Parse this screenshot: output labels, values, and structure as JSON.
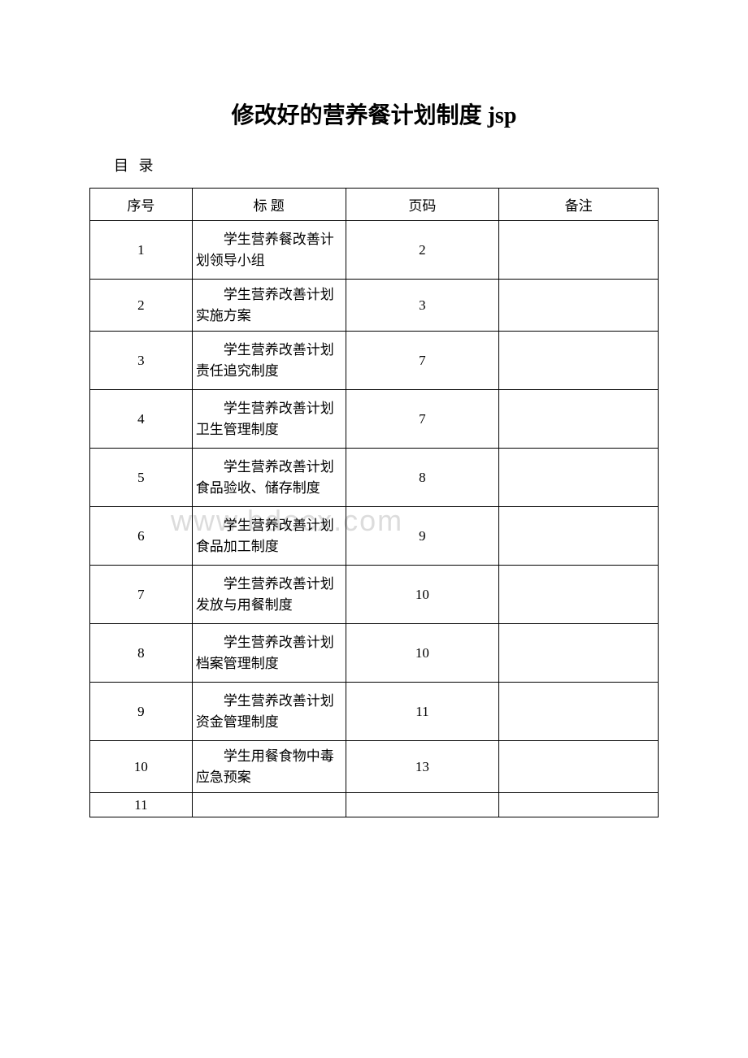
{
  "document": {
    "title": "修改好的营养餐计划制度 jsp",
    "subtitle": "目 录",
    "watermark": "www.bdocx.com"
  },
  "table": {
    "headers": {
      "seq": "序号",
      "title": "标 题",
      "page": "页码",
      "remark": "备注"
    },
    "rows": [
      {
        "seq": "1",
        "title": "学生营养餐改善计划领导小组",
        "page": "2",
        "remark": ""
      },
      {
        "seq": "2",
        "title": "学生营养改善计划实施方案",
        "page": "3",
        "remark": ""
      },
      {
        "seq": "3",
        "title": "学生营养改善计划责任追究制度",
        "page": "7",
        "remark": ""
      },
      {
        "seq": "4",
        "title": "学生营养改善计划卫生管理制度",
        "page": "7",
        "remark": ""
      },
      {
        "seq": "5",
        "title": "学生营养改善计划食品验收、储存制度",
        "page": "8",
        "remark": ""
      },
      {
        "seq": "6",
        "title": "学生营养改善计划食品加工制度",
        "page": "9",
        "remark": ""
      },
      {
        "seq": "7",
        "title": "学生营养改善计划发放与用餐制度",
        "page": "10",
        "remark": ""
      },
      {
        "seq": "8",
        "title": "学生营养改善计划档案管理制度",
        "page": "10",
        "remark": ""
      },
      {
        "seq": "9",
        "title": "学生营养改善计划资金管理制度",
        "page": "11",
        "remark": ""
      },
      {
        "seq": "10",
        "title": "学生用餐食物中毒应急预案",
        "page": "13",
        "remark": ""
      },
      {
        "seq": "11",
        "title": "",
        "page": "",
        "remark": ""
      }
    ]
  },
  "styling": {
    "background_color": "#ffffff",
    "text_color": "#000000",
    "border_color": "#000000",
    "watermark_color": "#dcdcdc",
    "title_fontsize": 28,
    "body_fontsize": 17,
    "subtitle_fontsize": 18
  }
}
